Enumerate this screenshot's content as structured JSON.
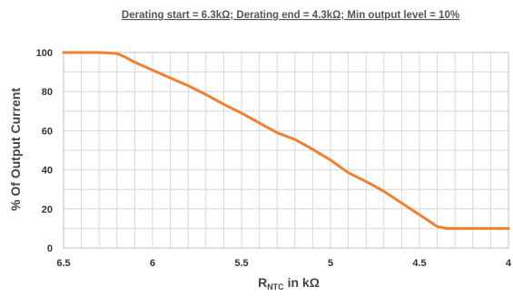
{
  "chart_data": {
    "type": "line",
    "title": "Derating start = 6.3kΩ; Derating end = 4.3kΩ; Min output level = 10%",
    "xlabel_main": "R",
    "xlabel_sub": "NTC",
    "xlabel_rest": " in kΩ",
    "ylabel": "% Of Output Current",
    "xlim": [
      6.5,
      4
    ],
    "ylim": [
      0,
      100
    ],
    "x_reversed": true,
    "x_ticks": [
      6.5,
      6,
      5.5,
      5,
      4.5,
      4
    ],
    "x_tick_labels": [
      "6.5",
      "6",
      "5.5",
      "5",
      "4.5",
      "4"
    ],
    "y_ticks": [
      0,
      20,
      40,
      60,
      80,
      100
    ],
    "y_tick_labels": [
      "0",
      "20",
      "40",
      "60",
      "80",
      "100"
    ],
    "grid": true,
    "x_minor_step": 0.1,
    "y_minor_step": 10,
    "series": [
      {
        "x": [
          6.5,
          6.3,
          6.2,
          6.15,
          6.1,
          6.0,
          5.9,
          5.8,
          5.7,
          5.6,
          5.5,
          5.4,
          5.3,
          5.2,
          5.1,
          5.0,
          4.9,
          4.8,
          4.7,
          4.6,
          4.5,
          4.4,
          4.35,
          4.3,
          4.2,
          4.0
        ],
        "y": [
          100,
          100,
          99.5,
          97.5,
          95,
          91,
          87,
          83,
          78.5,
          73.5,
          69,
          64,
          59,
          55.5,
          50.5,
          45,
          38.5,
          34,
          29,
          23,
          17,
          11,
          10,
          10,
          10,
          10
        ]
      }
    ],
    "colors": {
      "line": "#f08030",
      "grid": "#d8d8d8",
      "frame": "#bfbfbf",
      "background": "#ffffff"
    }
  }
}
